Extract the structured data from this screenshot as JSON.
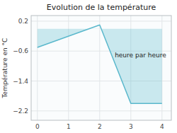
{
  "chart_data": {
    "type": "line",
    "title": "Evolution de la température",
    "y_label": "Température en °C",
    "annotation": "heure par heure",
    "x": [
      0,
      2,
      3,
      4
    ],
    "values": [
      -0.5,
      0.1,
      -2.0,
      -2.0
    ],
    "color": "#5ab8cc",
    "xlim": [
      -0.2,
      4.3
    ],
    "ylim": [
      -2.45,
      0.35
    ],
    "xticks": [
      0,
      1,
      2,
      3,
      4
    ],
    "yticks": [
      0.2,
      {
        "value": -0.6,
        "label": "−0.6"
      },
      {
        "value": -1.4,
        "label": "−1.4"
      },
      {
        "value": -2.2,
        "label": "−2.2"
      }
    ],
    "grid": true
  }
}
